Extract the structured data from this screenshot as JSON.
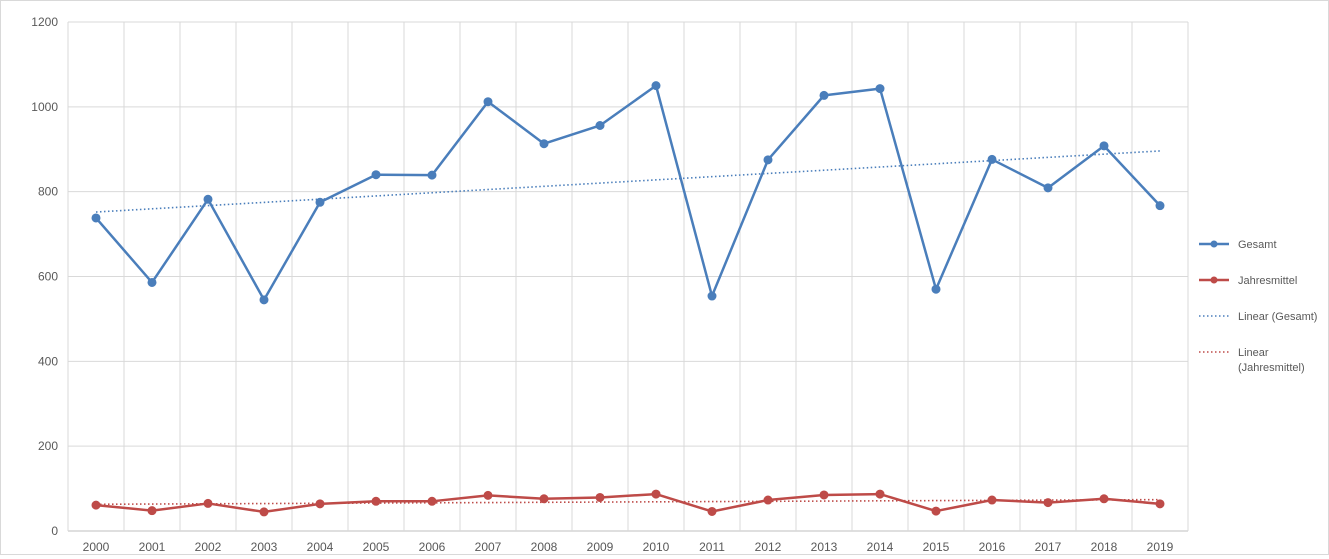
{
  "colors": {
    "gesamt": "#4a7ebb",
    "jahresmittel": "#be4b48",
    "grid": "#d9d9d9",
    "axis": "#bfbfbf",
    "text": "#595959"
  },
  "chart_data": {
    "type": "line",
    "title": "",
    "xlabel": "",
    "ylabel": "",
    "ylim": [
      0,
      1200
    ],
    "yticks": [
      0,
      200,
      400,
      600,
      800,
      1000,
      1200
    ],
    "grid": true,
    "legend_position": "right",
    "x": [
      "2000",
      "2001",
      "2002",
      "2003",
      "2004",
      "2005",
      "2006",
      "2007",
      "2008",
      "2009",
      "2010",
      "2011",
      "2012",
      "2013",
      "2014",
      "2015",
      "2016",
      "2017",
      "2018",
      "2019"
    ],
    "series": [
      {
        "name": "Gesamt",
        "color": "#4a7ebb",
        "values": [
          738,
          586,
          782,
          545,
          775,
          840,
          839,
          1012,
          913,
          956,
          1050,
          554,
          875,
          1027,
          1043,
          570,
          876,
          809,
          908,
          767
        ]
      },
      {
        "name": "Jahresmittel",
        "color": "#be4b48",
        "values": [
          61,
          48,
          65,
          45,
          64,
          70,
          70,
          84,
          76,
          79,
          87,
          46,
          73,
          85,
          87,
          47,
          73,
          67,
          76,
          64
        ]
      }
    ],
    "trendlines": [
      {
        "name": "Linear (Gesamt)",
        "color": "#4a7ebb",
        "start": 752,
        "end": 896
      },
      {
        "name_lines": [
          "Linear",
          "(Jahresmittel)"
        ],
        "color": "#be4b48",
        "start": 63,
        "end": 74
      }
    ]
  }
}
